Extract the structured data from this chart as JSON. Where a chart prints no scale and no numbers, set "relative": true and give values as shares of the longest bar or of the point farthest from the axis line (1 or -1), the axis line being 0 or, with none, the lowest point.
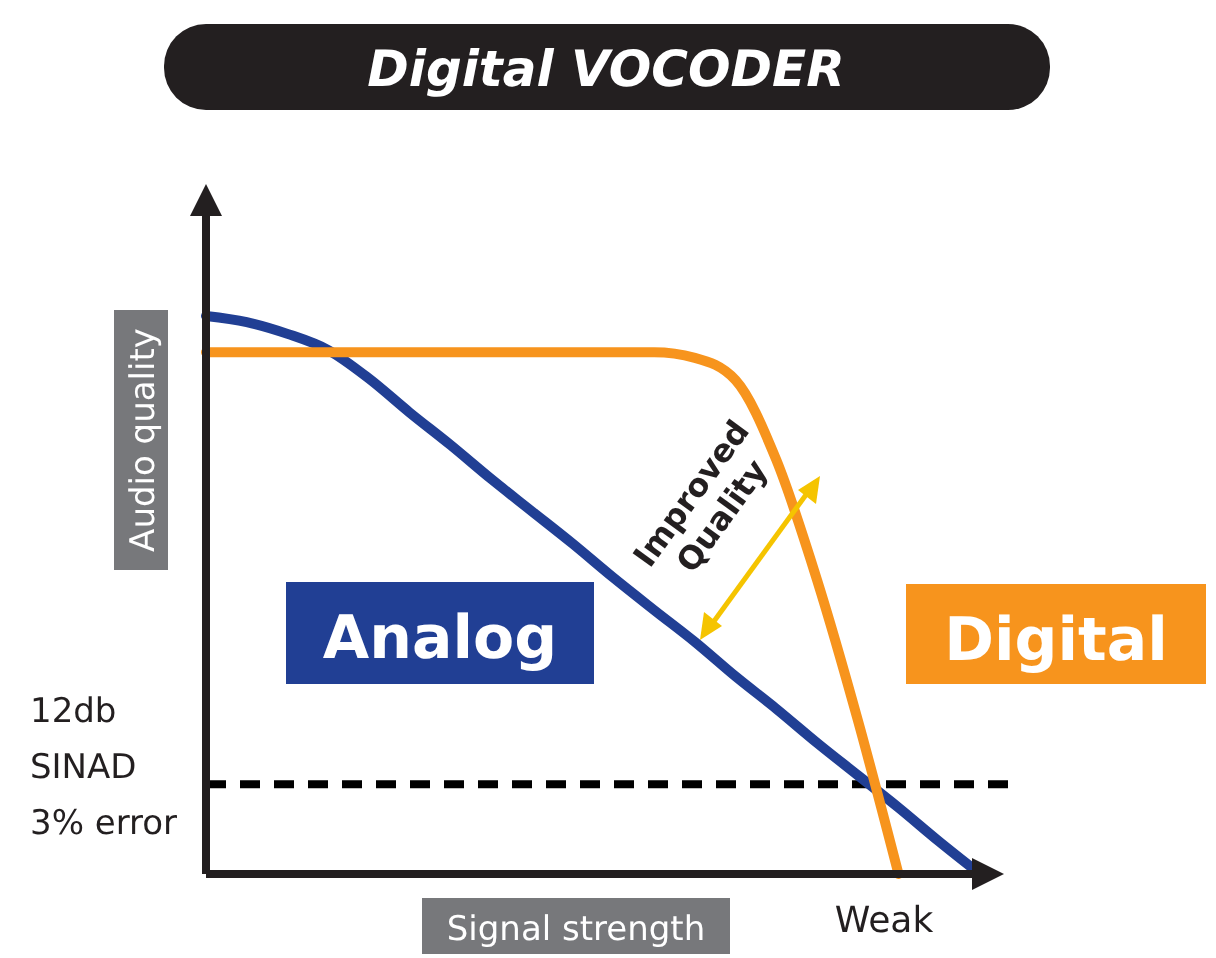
{
  "chart_data": {
    "type": "line",
    "title": "Digital VOCODER",
    "xlabel": "Signal strength",
    "ylabel": "Audio quality",
    "relative": true,
    "line_style": "solid",
    "categories": [
      null,
      null,
      null,
      null,
      null,
      null,
      null,
      null,
      null,
      null,
      null,
      null,
      null,
      null,
      null,
      null,
      null,
      null,
      null,
      null
    ],
    "series": [
      {
        "name": "Analog",
        "color": "#213f94",
        "values": [
          1.0,
          0.989,
          0.968,
          0.939,
          0.888,
          0.827,
          0.769,
          0.708,
          0.65,
          0.592,
          0.531,
          0.473,
          0.416,
          0.354,
          0.296,
          0.235,
          0.177,
          0.119,
          0.058,
          0
        ]
      },
      {
        "name": "Digital",
        "color": "#f7941d",
        "values": [
          0.935,
          0.935,
          0.935,
          0.935,
          0.935,
          0.935,
          0.935,
          0.935,
          0.935,
          0.935,
          0.935,
          0.935,
          0.925,
          0.885,
          0.742,
          0.527,
          0.276,
          0,
          null,
          null
        ]
      }
    ],
    "ref_lines": [
      {
        "axis": "y",
        "value": 0.161,
        "label": "12db\nSINAD\n3% error",
        "color": "#000000",
        "line_style": "dashed"
      }
    ],
    "annotations": [
      "Improved Quality",
      "Weak"
    ]
  }
}
